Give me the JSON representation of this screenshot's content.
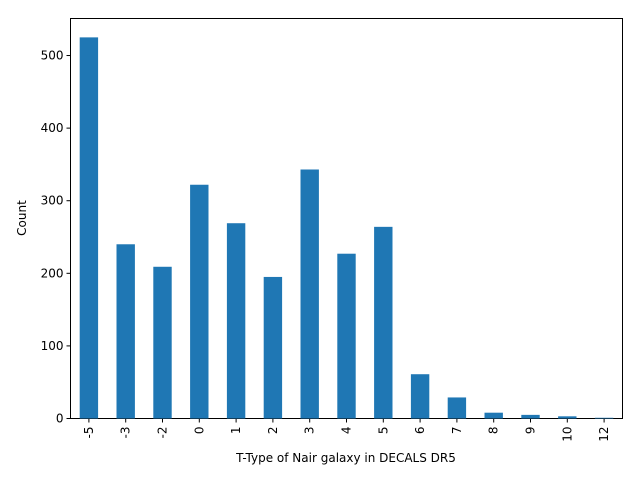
{
  "chart_data": {
    "type": "bar",
    "categories": [
      "-5",
      "-3",
      "-2",
      "0",
      "1",
      "2",
      "3",
      "4",
      "5",
      "6",
      "7",
      "8",
      "9",
      "10",
      "12"
    ],
    "values": [
      525,
      240,
      209,
      322,
      269,
      195,
      343,
      227,
      264,
      61,
      29,
      8,
      5,
      3,
      1
    ],
    "xlabel": "T-Type of Nair galaxy in DECALS DR5",
    "ylabel": "Count",
    "ylim": [
      0,
      551
    ],
    "yticks": [
      0,
      100,
      200,
      300,
      400,
      500
    ],
    "grid": false,
    "bar_color": "#1f77b4"
  }
}
